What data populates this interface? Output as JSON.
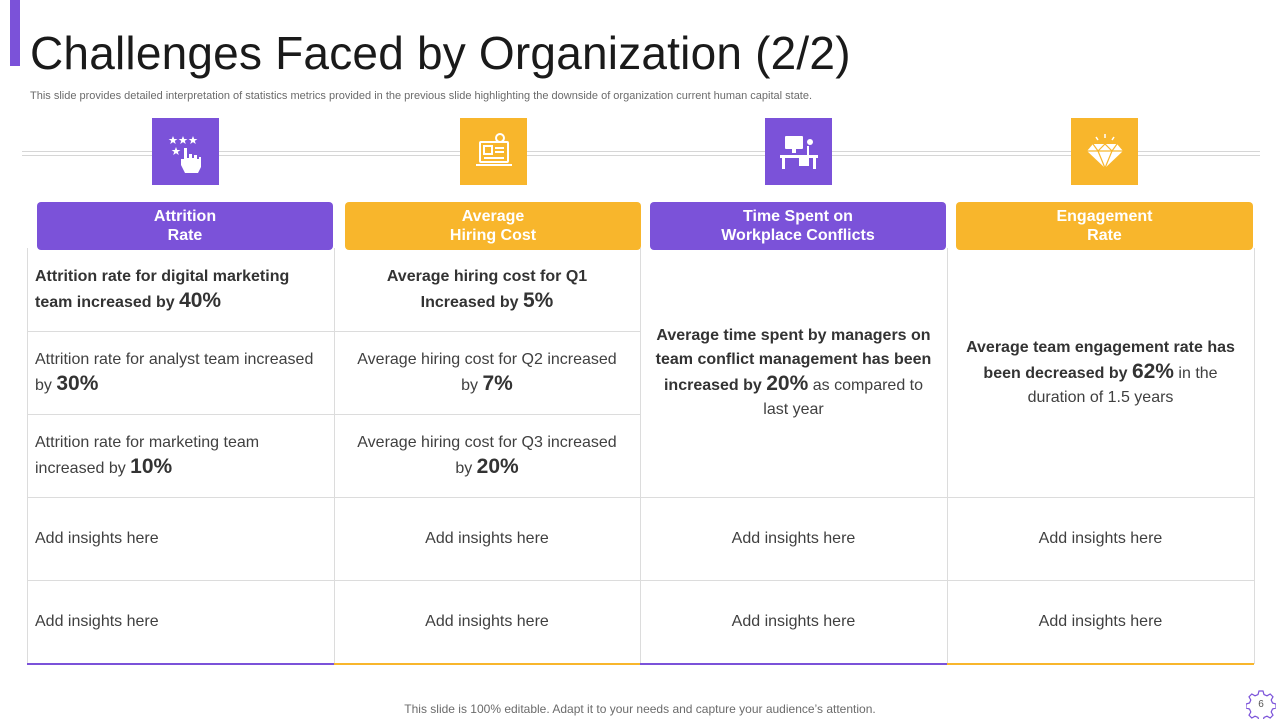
{
  "slide": {
    "title": "Challenges Faced by Organization (2/2)",
    "subtitle": "This slide provides detailed interpretation of statistics metrics provided in the previous slide highlighting the downside of organization current human capital state.",
    "footer": "This slide is 100% editable. Adapt it to your needs and capture your audience’s attention.",
    "page_number": "6"
  },
  "colors": {
    "purple": "#7B52D9",
    "yellow": "#F8B62C"
  },
  "columns": [
    {
      "icon": "rating-hand-icon",
      "header": "Attrition\nRate",
      "rows": [
        {
          "pre": "Attrition  rate for digital marketing team increased by ",
          "big": "40%"
        },
        {
          "pre": "Attrition rate for analyst  team increased by ",
          "big": "30%"
        },
        {
          "pre": "Attrition rate for marketing team increased by ",
          "big": "10%"
        }
      ],
      "insights": [
        "Add insights here",
        "Add insights here"
      ]
    },
    {
      "icon": "hiring-cost-icon",
      "header": "Average\nHiring Cost",
      "rows": [
        {
          "pre": "Average hiring cost for Q1 Increased by ",
          "big": "5%"
        },
        {
          "pre": "Average hiring cost for Q2 increased by ",
          "big": "7%"
        },
        {
          "pre": "Average hiring cost for Q3 increased by ",
          "big": "20%"
        }
      ],
      "insights": [
        "Add insights here",
        "Add insights here"
      ]
    },
    {
      "icon": "workplace-desk-icon",
      "header": "Time Spent on\nWorkplace Conflicts",
      "text": {
        "pre": "Average time spent by managers on team conflict management has been increased by ",
        "big": "20%",
        "post": " as compared to last year"
      },
      "insights": [
        "Add insights here",
        "Add insights here"
      ]
    },
    {
      "icon": "diamond-icon",
      "header": "Engagement\nRate",
      "text": {
        "pre": "Average team engagement rate has been decreased by ",
        "big": "62%",
        "post": " in the duration of 1.5 years"
      },
      "insights": [
        "Add insights here",
        "Add insights here"
      ]
    }
  ]
}
